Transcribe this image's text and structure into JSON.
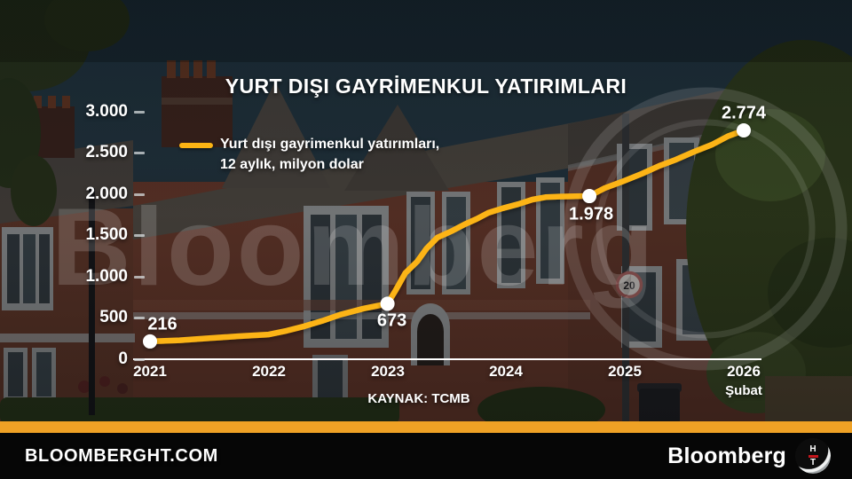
{
  "title": "YURT DIŞI GAYRİMENKUL YATIRIMLARI",
  "legend": {
    "line1": "Yurt dışı gayrimenkul yatırımları,",
    "line2": "12 aylık, milyon dolar"
  },
  "source": "KAYNAK: TCMB",
  "watermark": {
    "text": "Bloomberg"
  },
  "scene": {
    "speed_sign": "20"
  },
  "footer": {
    "site": "BLOOMBERGHT.COM",
    "brand": "Bloomberg",
    "badge_top": "H",
    "badge_bottom": "T"
  },
  "colors": {
    "line": "#FCB414",
    "accent_bar": "#EFA125",
    "marker": "#FFFFFF",
    "badge_red": "#C4161C"
  },
  "chart_data": {
    "type": "line",
    "title": "YURT DIŞI GAYRİMENKUL YATIRIMLARI",
    "xlabel": "",
    "ylabel": "milyon dolar",
    "xlim": [
      2021,
      2026.08
    ],
    "ylim": [
      0,
      3000
    ],
    "grid": false,
    "legend_position": "top-left",
    "x_ticks": [
      {
        "t": 2021,
        "label": "2021"
      },
      {
        "t": 2022,
        "label": "2022"
      },
      {
        "t": 2023,
        "label": "2023"
      },
      {
        "t": 2024,
        "label": "2024"
      },
      {
        "t": 2025,
        "label": "2025"
      },
      {
        "t": 2026,
        "label": "2026",
        "sub": "Şubat"
      }
    ],
    "y_ticks": [
      {
        "v": 3000,
        "label": "3.000"
      },
      {
        "v": 2500,
        "label": "2.500"
      },
      {
        "v": 2000,
        "label": "2.000"
      },
      {
        "v": 1500,
        "label": "1.500"
      },
      {
        "v": 1000,
        "label": "1.000"
      },
      {
        "v": 500,
        "label": "500"
      },
      {
        "v": 0,
        "label": "0"
      }
    ],
    "series": [
      {
        "name": "Yurt dışı gayrimenkul yatırımları, 12 aylık, milyon dolar",
        "color": "#FCB414",
        "points": [
          [
            2021.0,
            216
          ],
          [
            2021.25,
            230
          ],
          [
            2021.5,
            255
          ],
          [
            2021.75,
            280
          ],
          [
            2022.0,
            300
          ],
          [
            2022.15,
            345
          ],
          [
            2022.3,
            400
          ],
          [
            2022.45,
            465
          ],
          [
            2022.6,
            540
          ],
          [
            2022.8,
            615
          ],
          [
            2023.0,
            673
          ],
          [
            2023.07,
            840
          ],
          [
            2023.15,
            1045
          ],
          [
            2023.25,
            1185
          ],
          [
            2023.33,
            1345
          ],
          [
            2023.42,
            1475
          ],
          [
            2023.55,
            1560
          ],
          [
            2023.65,
            1635
          ],
          [
            2023.75,
            1700
          ],
          [
            2023.85,
            1775
          ],
          [
            2023.97,
            1830
          ],
          [
            2024.1,
            1880
          ],
          [
            2024.22,
            1935
          ],
          [
            2024.33,
            1965
          ],
          [
            2024.45,
            1972
          ],
          [
            2024.58,
            1975
          ],
          [
            2024.7,
            1978
          ],
          [
            2024.83,
            2075
          ],
          [
            2024.97,
            2150
          ],
          [
            2025.14,
            2247
          ],
          [
            2025.29,
            2345
          ],
          [
            2025.43,
            2420
          ],
          [
            2025.58,
            2515
          ],
          [
            2025.73,
            2600
          ],
          [
            2025.87,
            2705
          ],
          [
            2026.0,
            2774
          ]
        ]
      }
    ],
    "annotations": [
      {
        "t": 2021.0,
        "value": 216,
        "label": "216",
        "offset": [
          14,
          -19
        ]
      },
      {
        "t": 2023.0,
        "value": 673,
        "label": "673",
        "offset": [
          5,
          20
        ]
      },
      {
        "t": 2024.7,
        "value": 1978,
        "label": "1.978",
        "offset": [
          2,
          21
        ]
      },
      {
        "t": 2026.0,
        "value": 2774,
        "label": "2.774",
        "offset": [
          0,
          -19
        ]
      }
    ]
  }
}
